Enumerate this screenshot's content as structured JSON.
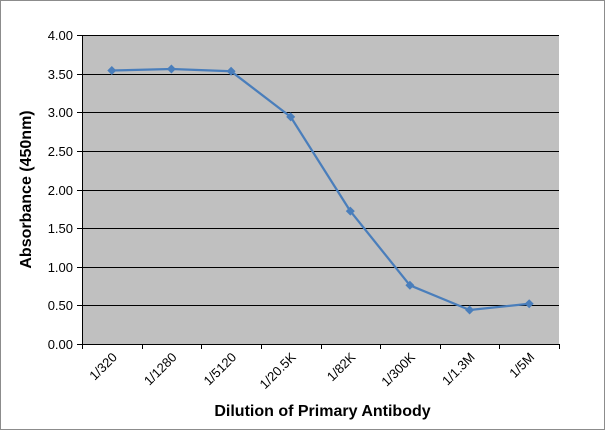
{
  "chart_data": {
    "type": "line",
    "title": "",
    "xlabel": "Dilution of Primary Antibody",
    "ylabel": "Absorbance (450nm)",
    "categories": [
      "1/320",
      "1/1280",
      "1/5120",
      "1/20.5K",
      "1/82K",
      "1/300K",
      "1/1.3M",
      "1/5M"
    ],
    "series": [
      {
        "values": [
          3.54,
          3.56,
          3.53,
          2.94,
          1.72,
          0.76,
          0.44,
          0.52
        ]
      }
    ],
    "ylim": [
      0,
      4
    ],
    "yticks": [
      "0.00",
      "0.50",
      "1.00",
      "1.50",
      "2.00",
      "2.50",
      "3.00",
      "3.50",
      "4.00"
    ],
    "grid": true,
    "legend": "none",
    "colors": {
      "plot_background": "#c0c0c0",
      "series_line": "#4a7ebb",
      "gridline": "#000000",
      "frame": "#8c8c8c"
    }
  }
}
